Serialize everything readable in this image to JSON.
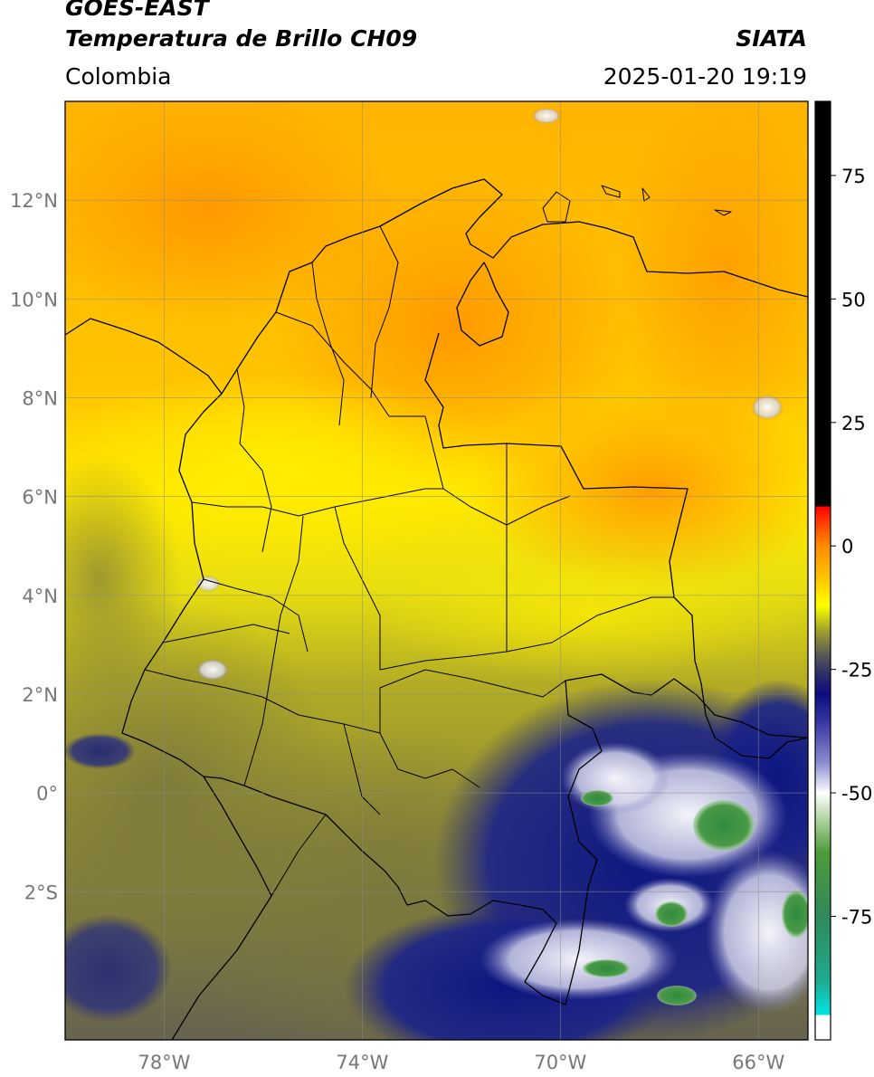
{
  "header": {
    "satellite": "GOES-EAST",
    "product": "Temperatura de Brillo CH09",
    "region": "Colombia",
    "agency": "SIATA",
    "datetime": "2025-01-20 19:19"
  },
  "map": {
    "lon_range": [
      -80.0,
      -65.0
    ],
    "lat_range": [
      -5.0,
      14.0
    ],
    "lon_ticks": [
      {
        "value": -78,
        "label": "78°W"
      },
      {
        "value": -74,
        "label": "74°W"
      },
      {
        "value": -70,
        "label": "70°W"
      },
      {
        "value": -66,
        "label": "66°W"
      }
    ],
    "lat_ticks": [
      {
        "value": 12,
        "label": "12°N"
      },
      {
        "value": 10,
        "label": "10°N"
      },
      {
        "value": 8,
        "label": "8°N"
      },
      {
        "value": 6,
        "label": "6°N"
      },
      {
        "value": 4,
        "label": "4°N"
      },
      {
        "value": 2,
        "label": "2°N"
      },
      {
        "value": 0,
        "label": "0°"
      },
      {
        "value": -2,
        "label": "2°S"
      }
    ],
    "grid": true,
    "colorbar": {
      "placement": "right",
      "range": [
        -100,
        90
      ],
      "ticks": [
        {
          "value": 75,
          "label": "75"
        },
        {
          "value": 50,
          "label": "50"
        },
        {
          "value": 25,
          "label": "25"
        },
        {
          "value": 0,
          "label": "0"
        },
        {
          "value": -25,
          "label": "-25"
        },
        {
          "value": -50,
          "label": "-50"
        },
        {
          "value": -75,
          "label": "-75"
        }
      ],
      "stops": [
        {
          "value": -100,
          "color": "#ffffff"
        },
        {
          "value": -95,
          "color": "#ffffff"
        },
        {
          "value": -95,
          "color": "#00e5e5"
        },
        {
          "value": -88,
          "color": "#1faa8f"
        },
        {
          "value": -75,
          "color": "#2f8a5a"
        },
        {
          "value": -62,
          "color": "#4e9b3a"
        },
        {
          "value": -55,
          "color": "#b7d6a6"
        },
        {
          "value": -50,
          "color": "#ffffff"
        },
        {
          "value": -44,
          "color": "#8e8ed2"
        },
        {
          "value": -36,
          "color": "#3a3aa4"
        },
        {
          "value": -30,
          "color": "#0b0b80"
        },
        {
          "value": -26,
          "color": "#2d2d6a"
        },
        {
          "value": -22,
          "color": "#5a5a58"
        },
        {
          "value": -17,
          "color": "#a3a32a"
        },
        {
          "value": -12,
          "color": "#ffff00"
        },
        {
          "value": -6,
          "color": "#ffc000"
        },
        {
          "value": 0,
          "color": "#ff8c00"
        },
        {
          "value": 4,
          "color": "#ff4a00"
        },
        {
          "value": 8,
          "color": "#ff0000"
        },
        {
          "value": 8,
          "color": "#000000"
        },
        {
          "value": 90,
          "color": "#000000"
        }
      ]
    },
    "field": {
      "colors": {
        "yellow": "#ffea00",
        "orange": "#ffb000",
        "deep_orange": "#ff9800",
        "olive": "#a6a02c",
        "dark_olive": "#7c7a3e",
        "navy": "#0d1680",
        "white_cloud": "#f2f2f7",
        "green_core": "#3e8f42"
      }
    }
  }
}
